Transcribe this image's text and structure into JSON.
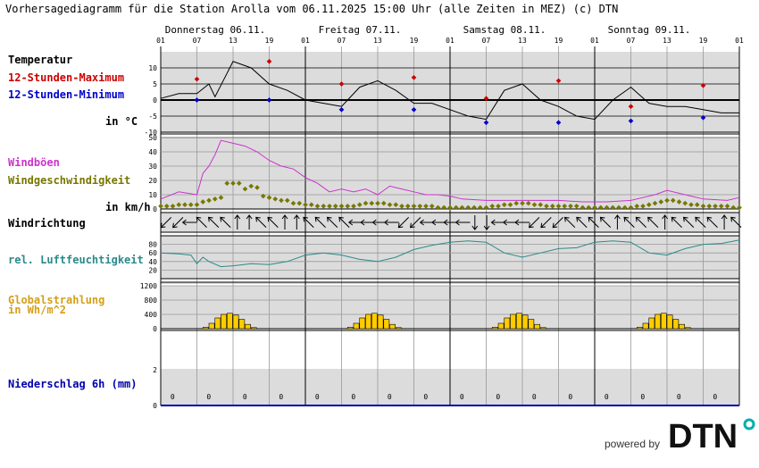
{
  "header": {
    "title": "Vorhersagediagramm für die Station Arolla vom 06.11.2025 15:00 Uhr (alle Zeiten in MEZ)   (c) DTN"
  },
  "labels": {
    "temperatur": "Temperatur",
    "max": "12-Stunden-Maximum",
    "min": "12-Stunden-Minimum",
    "temp_unit": "in °C",
    "windboeen": "Windböen",
    "windgeschw": "Windgeschwindigkeit",
    "wind_unit": "in km/h",
    "windrichtung": "Windrichtung",
    "feuchte": "rel. Luftfeuchtigkeit",
    "strahlung1": "Globalstrahlung",
    "strahlung2": "in Wh/m^2",
    "niederschlag": "Niederschlag 6h (mm)"
  },
  "footer": {
    "powered": "powered by",
    "brand": "DTN"
  },
  "colors": {
    "temp_line": "#000000",
    "max": "#cc0000",
    "min": "#0000cc",
    "gust": "#cc33cc",
    "wind": "#777700",
    "humidity": "#2a8a8a",
    "radiation": "#ffcc00",
    "precip": "#0000aa",
    "panel_bg": "#dcdcdc"
  },
  "chart_data": {
    "days": [
      "Donnerstag 06.11.",
      "Freitag 07.11.",
      "Samstag 08.11.",
      "Sonntag 09.11."
    ],
    "hour_ticks": [
      "01",
      "07",
      "13",
      "19",
      "01",
      "07",
      "13",
      "19",
      "01",
      "07",
      "13",
      "19",
      "01",
      "07",
      "13",
      "19",
      "01"
    ],
    "temperature": {
      "type": "line",
      "ylim": [
        -10,
        15
      ],
      "yticks": [
        -10,
        -5,
        0,
        5,
        10
      ],
      "x_hours": [
        0,
        3,
        6,
        8,
        9,
        12,
        15,
        18,
        21,
        24,
        27,
        30,
        33,
        36,
        39,
        42,
        45,
        48,
        51,
        54,
        57,
        60,
        63,
        66,
        69,
        72,
        75,
        78,
        81,
        84,
        87,
        90,
        93,
        96
      ],
      "values": [
        0.5,
        2,
        2,
        5,
        1,
        12,
        10,
        5,
        3,
        0,
        -1,
        -2,
        4,
        6,
        3,
        -1,
        -1,
        -3,
        -5,
        -6,
        3,
        5,
        0,
        -2,
        -5,
        -6,
        0,
        4,
        -1,
        -2,
        -2,
        -3,
        -4,
        -4
      ],
      "max_points": [
        {
          "h": 6,
          "v": 6.5
        },
        {
          "h": 18,
          "v": 12
        },
        {
          "h": 30,
          "v": 5
        },
        {
          "h": 42,
          "v": 7
        },
        {
          "h": 54,
          "v": 0.5
        },
        {
          "h": 66,
          "v": 6
        },
        {
          "h": 78,
          "v": -2
        },
        {
          "h": 90,
          "v": 4.5
        }
      ],
      "min_points": [
        {
          "h": 6,
          "v": 0
        },
        {
          "h": 18,
          "v": 0
        },
        {
          "h": 30,
          "v": -3
        },
        {
          "h": 42,
          "v": -3
        },
        {
          "h": 54,
          "v": -7
        },
        {
          "h": 66,
          "v": -7
        },
        {
          "h": 78,
          "v": -6.5
        },
        {
          "h": 90,
          "v": -5.5
        }
      ]
    },
    "wind": {
      "type": "line+scatter",
      "ylim": [
        0,
        50
      ],
      "yticks": [
        0,
        10,
        20,
        30,
        40,
        50
      ],
      "gust_x": [
        0,
        3,
        6,
        7,
        8,
        9,
        10,
        12,
        14,
        16,
        18,
        20,
        22,
        24,
        26,
        28,
        30,
        32,
        34,
        36,
        38,
        40,
        42,
        44,
        46,
        48,
        50,
        54,
        58,
        62,
        66,
        70,
        74,
        78,
        80,
        82,
        84,
        86,
        88,
        90,
        94,
        96
      ],
      "gust": [
        7,
        12,
        10,
        25,
        30,
        38,
        48,
        46,
        44,
        40,
        34,
        30,
        28,
        22,
        18,
        12,
        14,
        12,
        14,
        10,
        16,
        14,
        12,
        10,
        10,
        9,
        7,
        6,
        6,
        6,
        6,
        5,
        5,
        6,
        8,
        10,
        13,
        11,
        9,
        7,
        6,
        8
      ],
      "speed_x": [
        0,
        1,
        2,
        3,
        4,
        5,
        6,
        7,
        8,
        9,
        10,
        11,
        12,
        13,
        14,
        15,
        16,
        17,
        18,
        19,
        20,
        21,
        22,
        23,
        24,
        25,
        26,
        27,
        28,
        29,
        30,
        31,
        32,
        33,
        34,
        35,
        36,
        37,
        38,
        39,
        40,
        41,
        42,
        43,
        44,
        45,
        46,
        47,
        48,
        49,
        50,
        51,
        52,
        53,
        54,
        55,
        56,
        57,
        58,
        59,
        60,
        61,
        62,
        63,
        64,
        65,
        66,
        67,
        68,
        69,
        70,
        71,
        72,
        73,
        74,
        75,
        76,
        77,
        78,
        79,
        80,
        81,
        82,
        83,
        84,
        85,
        86,
        87,
        88,
        89,
        90,
        91,
        92,
        93,
        94,
        95,
        96
      ],
      "speed": [
        2,
        2,
        2,
        3,
        3,
        3,
        3,
        5,
        6,
        7,
        8,
        18,
        18,
        18,
        14,
        16,
        15,
        9,
        8,
        7,
        6,
        6,
        4,
        4,
        3,
        3,
        2,
        2,
        2,
        2,
        2,
        2,
        2,
        3,
        4,
        4,
        4,
        4,
        3,
        3,
        2,
        2,
        2,
        2,
        2,
        2,
        1,
        1,
        1,
        1,
        1,
        1,
        1,
        1,
        1,
        2,
        2,
        3,
        3,
        4,
        4,
        4,
        3,
        3,
        2,
        2,
        2,
        2,
        2,
        2,
        1,
        1,
        1,
        1,
        1,
        1,
        1,
        1,
        1,
        2,
        2,
        3,
        4,
        5,
        6,
        6,
        5,
        4,
        3,
        3,
        2,
        2,
        2,
        2,
        2,
        1,
        1
      ]
    },
    "wind_direction_deg": [
      225,
      225,
      270,
      315,
      315,
      315,
      0,
      0,
      315,
      315,
      0,
      0,
      315,
      315,
      315,
      315,
      270,
      270,
      270,
      270,
      225,
      225,
      270,
      270,
      270,
      270,
      180,
      180,
      270,
      270,
      270,
      225,
      225,
      225,
      315,
      315,
      315,
      315,
      0,
      315,
      315,
      315,
      0,
      315,
      315,
      315,
      315,
      0,
      315
    ],
    "humidity": {
      "type": "line",
      "ylim": [
        0,
        100
      ],
      "yticks": [
        20,
        40,
        60,
        80
      ],
      "x_hours": [
        0,
        3,
        5,
        6,
        7,
        8,
        10,
        12,
        15,
        18,
        21,
        24,
        27,
        30,
        33,
        36,
        39,
        42,
        45,
        48,
        51,
        54,
        57,
        60,
        63,
        66,
        69,
        72,
        75,
        78,
        81,
        84,
        87,
        90,
        93,
        96
      ],
      "values": [
        60,
        58,
        55,
        35,
        50,
        40,
        28,
        30,
        35,
        33,
        40,
        55,
        60,
        55,
        45,
        40,
        50,
        68,
        78,
        85,
        88,
        85,
        60,
        50,
        60,
        70,
        72,
        85,
        88,
        85,
        60,
        55,
        70,
        80,
        82,
        90
      ]
    },
    "radiation": {
      "type": "bar",
      "ylim": [
        0,
        1200
      ],
      "yticks": [
        0,
        400,
        800,
        1200
      ],
      "days_hours": [
        7,
        8,
        9,
        10,
        11,
        12,
        13,
        14,
        15,
        16
      ],
      "values": [
        0,
        40,
        150,
        300,
        400,
        430,
        380,
        260,
        120,
        30
      ]
    },
    "precipitation": {
      "type": "bar",
      "ylim": [
        0,
        2
      ],
      "yticks": [
        0,
        2
      ],
      "labels": [
        "0",
        "0",
        "0",
        "0",
        "0",
        "0",
        "0",
        "0",
        "0",
        "0",
        "0",
        "0",
        "0",
        "0",
        "0",
        "0"
      ]
    }
  }
}
